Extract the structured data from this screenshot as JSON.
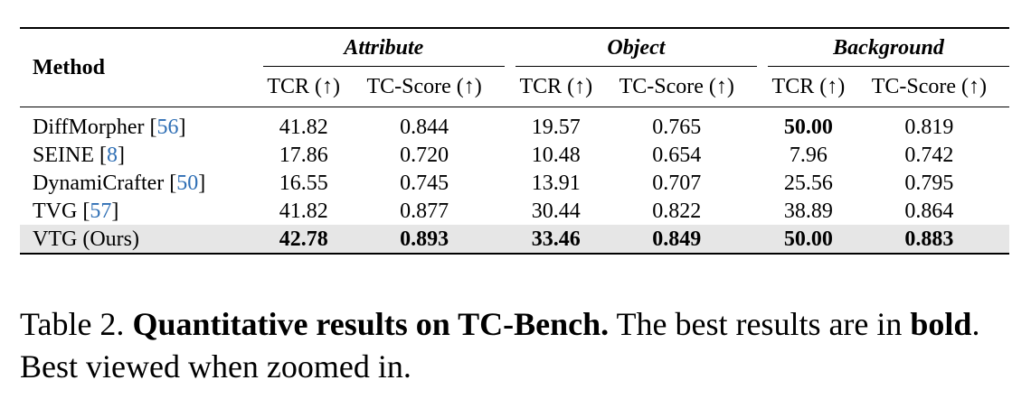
{
  "table": {
    "method_header": "Method",
    "groups": [
      {
        "title": "Attribute"
      },
      {
        "title": "Object"
      },
      {
        "title": "Background"
      }
    ],
    "subheaders": [
      "TCR (↑)",
      "TC-Score (↑)",
      "TCR (↑)",
      "TC-Score (↑)",
      "TCR (↑)",
      "TC-Score (↑)"
    ],
    "rows": [
      {
        "name": "DiffMorpher",
        "open": " [",
        "cite": "56",
        "close": "]",
        "values": [
          "41.82",
          "0.844",
          "19.57",
          "0.765",
          "50.00",
          "0.819"
        ],
        "bold": [
          false,
          false,
          false,
          false,
          true,
          false
        ]
      },
      {
        "name": "SEINE",
        "open": " [",
        "cite": "8",
        "close": "]",
        "values": [
          "17.86",
          "0.720",
          "10.48",
          "0.654",
          "7.96",
          "0.742"
        ],
        "bold": [
          false,
          false,
          false,
          false,
          false,
          false
        ]
      },
      {
        "name": "DynamiCrafter",
        "open": " [",
        "cite": "50",
        "close": "]",
        "values": [
          "16.55",
          "0.745",
          "13.91",
          "0.707",
          "25.56",
          "0.795"
        ],
        "bold": [
          false,
          false,
          false,
          false,
          false,
          false
        ]
      },
      {
        "name": "TVG",
        "open": " [",
        "cite": "57",
        "close": "]",
        "values": [
          "41.82",
          "0.877",
          "30.44",
          "0.822",
          "38.89",
          "0.864"
        ],
        "bold": [
          false,
          false,
          false,
          false,
          false,
          false
        ]
      },
      {
        "name": "VTG (Ours)",
        "open": "",
        "cite": "",
        "close": "",
        "values": [
          "42.78",
          "0.893",
          "33.46",
          "0.849",
          "50.00",
          "0.883"
        ],
        "bold": [
          true,
          true,
          true,
          true,
          true,
          true
        ],
        "highlight": true
      }
    ]
  },
  "caption": {
    "label": "Table 2.",
    "title": "Quantitative results on TC-Bench.",
    "text1": " The best results are in ",
    "bold_word": "bold",
    "text2": ". Best viewed when zoomed in."
  }
}
